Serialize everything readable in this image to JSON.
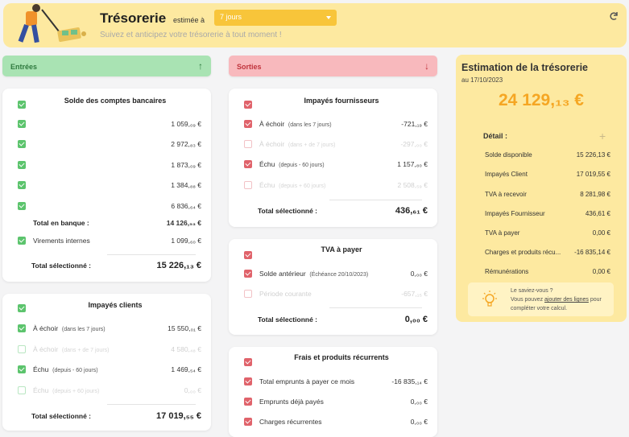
{
  "header": {
    "title": "Trésorerie",
    "estimated_label": "estimée à",
    "period_value": "7 jours",
    "subtitle": "Suivez et anticipez votre trésorerie à tout moment !"
  },
  "bands": {
    "entrees": "Entrées",
    "sorties": "Sorties",
    "entrees_arrow": "↑",
    "sorties_arrow": "↓"
  },
  "bank": {
    "title": "Solde des comptes bancaires",
    "accounts": [
      "1 059,₀₉ €",
      "2 972,₈₃ €",
      "1 873,₀₉ €",
      "1 384,₈₈ €",
      "6 836,₆₄ €"
    ],
    "total_label": "Total en banque :",
    "total_value": "14 126,₅₃ €",
    "internal_label": "Virements internes",
    "internal_value": "1 099,₆₀ €",
    "selected_label": "Total sélectionné :",
    "selected_value": "15 226,₁₃ €"
  },
  "clients": {
    "title": "Impayés clients",
    "rows": [
      {
        "label": "À échoir",
        "note": "(dans les 7 jours)",
        "value": "15 550,₀₁ €"
      },
      {
        "label": "À échoir",
        "note": "(dans + de 7 jours)",
        "value": "4 580,₄₈ €"
      },
      {
        "label": "Échu",
        "note": "(depuis - 60 jours)",
        "value": "1 469,₅₄ €"
      },
      {
        "label": "Échu",
        "note": "(depuis + 60 jours)",
        "value": "0,₀₀ €"
      }
    ],
    "selected_label": "Total sélectionné :",
    "selected_value": "17 019,₅₅ €"
  },
  "suppliers": {
    "title": "Impayés fournisseurs",
    "rows": [
      {
        "label": "À échoir",
        "note": "(dans les 7 jours)",
        "value": "-721,₁₉ €"
      },
      {
        "label": "À échoir",
        "note": "(dans + de 7 jours)",
        "value": "-297,₀₀ €"
      },
      {
        "label": "Échu",
        "note": "(depuis - 60 jours)",
        "value": "1 157,₈₀ €"
      },
      {
        "label": "Échu",
        "note": "(depuis + 60 jours)",
        "value": "2 508,₅₉ €"
      }
    ],
    "selected_label": "Total sélectionné :",
    "selected_value": "436,₆₁ €"
  },
  "tva": {
    "title": "TVA à payer",
    "rows": [
      {
        "label": "Solde antérieur",
        "note": "(Échéance 20/10/2023)",
        "value": "0,₀₀ €"
      },
      {
        "label": "Période courante",
        "note": "",
        "value": "-657,₁₅ €"
      }
    ],
    "selected_label": "Total sélectionné :",
    "selected_value": "0,₀₀ €"
  },
  "frais": {
    "title": "Frais et produits récurrents",
    "rows": [
      {
        "label": "Total emprunts à payer ce mois",
        "value": "-16 835,₁₄ €"
      },
      {
        "label": "Emprunts déjà payés",
        "value": "0,₀₀ €"
      },
      {
        "label": "Charges récurrentes",
        "value": "0,₀₀ €"
      }
    ]
  },
  "estimation": {
    "title": "Estimation de la trésorerie",
    "date": "au 17/10/2023",
    "amount": "24 129,₁₃ €",
    "detail_label": "Détail :",
    "plus": "+",
    "rows": [
      {
        "label": "Solde disponible",
        "value": "15 226,13 €"
      },
      {
        "label": "Impayés Client",
        "value": "17 019,55 €"
      },
      {
        "label": "TVA à recevoir",
        "value": "8 281,98 €"
      },
      {
        "label": "Impayés Fournisseur",
        "value": "436,61 €"
      },
      {
        "label": "TVA à payer",
        "value": "0,00 €"
      },
      {
        "label": "Charges et produits récu...",
        "value": "-16 835,14 €"
      },
      {
        "label": "Rémunérations",
        "value": "0,00 €"
      }
    ],
    "tip_question": "Le saviez-vous ?",
    "tip_prefix": "Vous pouvez ",
    "tip_link": "ajouter des lignes",
    "tip_suffix": " pour compléter votre calcul."
  },
  "colors": {
    "header_bg": "#fde9a0",
    "select_bg": "#f8c53a",
    "entrees_bg": "#a9e3b3",
    "sorties_bg": "#f8b9bd",
    "amount": "#f5a623"
  }
}
